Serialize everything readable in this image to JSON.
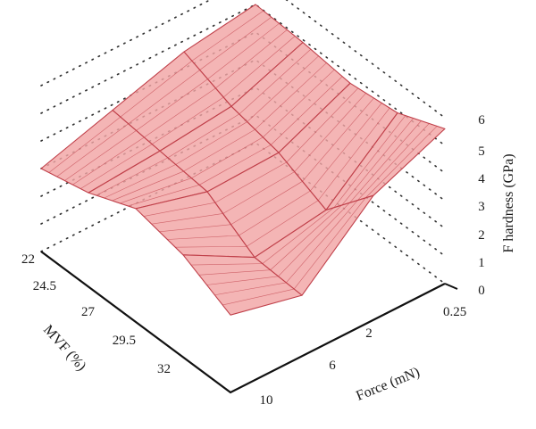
{
  "chart_data": {
    "type": "surface3d",
    "axes": {
      "x": {
        "label": "MVF (%)",
        "ticks": [
          "22",
          "24.5",
          "27",
          "29.5",
          "32"
        ],
        "range": [
          22,
          32
        ]
      },
      "y": {
        "label": "Force (mN)",
        "ticks": [
          "0.25",
          "2",
          "6",
          "10"
        ]
      },
      "z": {
        "label": "F hardness (GPa)",
        "ticks": [
          "0",
          "1",
          "2",
          "3",
          "4",
          "5",
          "6"
        ],
        "range": [
          0,
          6
        ]
      }
    },
    "grid": true,
    "surface_color": "#f2a5a5",
    "mesh_color": "#c0404a",
    "mvf": [
      22,
      24.5,
      27,
      29.5,
      32
    ],
    "force": [
      10,
      6,
      2,
      0.25
    ],
    "hardness": [
      [
        3.0,
        3.8,
        4.6,
        5.0
      ],
      [
        3.4,
        3.6,
        3.9,
        4.9
      ],
      [
        4.1,
        3.4,
        3.5,
        4.7
      ],
      [
        3.7,
        2.3,
        2.7,
        4.9
      ],
      [
        2.8,
        2.2,
        4.5,
        5.6
      ]
    ]
  }
}
